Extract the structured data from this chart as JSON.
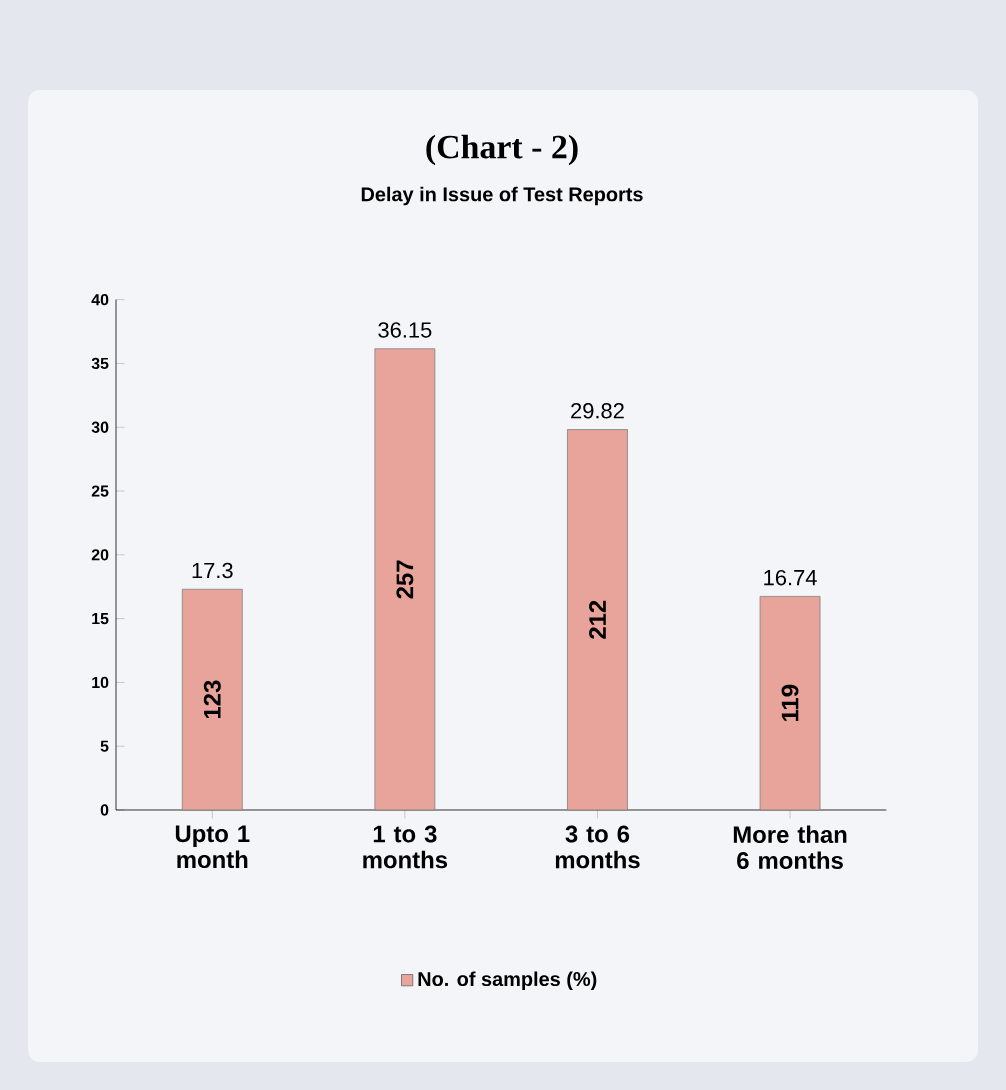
{
  "chart_data": {
    "type": "bar",
    "title": "(Chart - 2)",
    "subtitle": "Delay in Issue of Test Reports",
    "categories": [
      "Upto 1 month",
      "1 to 3 months",
      "3 to 6 months",
      "More than 6 months"
    ],
    "series": [
      {
        "name": "No. of samples (%)",
        "color": "#e8a49a",
        "values": [
          17.3,
          36.15,
          29.82,
          16.74
        ]
      }
    ],
    "ylim": [
      0,
      40
    ],
    "yticks": [
      0,
      5,
      10,
      15,
      20,
      25,
      30,
      35,
      40
    ],
    "data_labels": true,
    "legend": "bottom",
    "annotations": [
      "123",
      "257",
      "212",
      "119"
    ]
  }
}
